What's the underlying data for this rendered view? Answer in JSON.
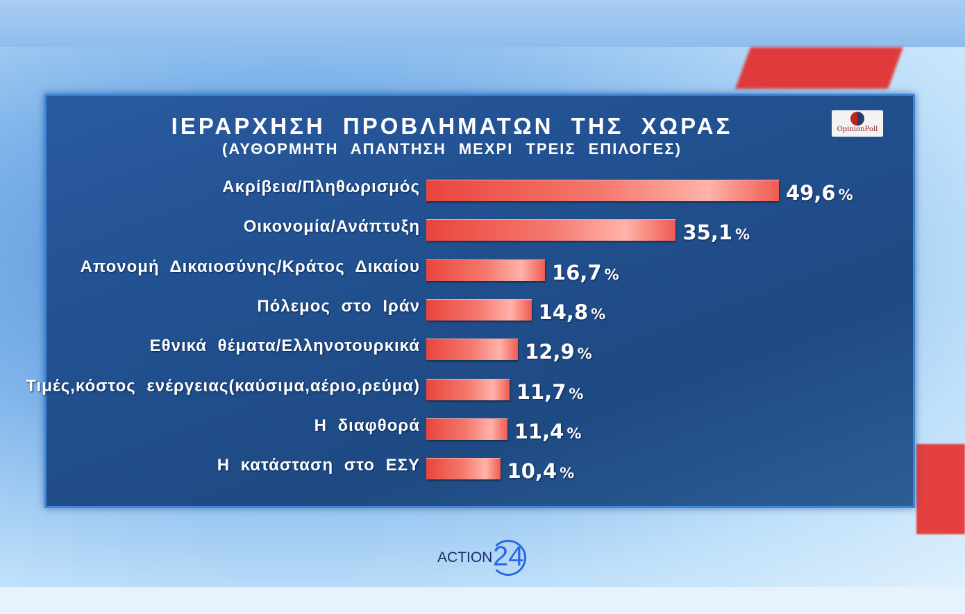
{
  "chart_data": {
    "type": "bar",
    "orientation": "horizontal",
    "title": "ΙΕΡΑΡΧΗΣΗ ΠΡΟΒΛΗΜΑΤΩΝ ΤΗΣ ΧΩΡΑΣ",
    "subtitle": "(ΑΥΘΟΡΜΗΤΗ ΑΠΑΝΤΗΣΗ ΜΕΧΡΙ ΤΡΕΙΣ ΕΠΙΛΟΓΕΣ)",
    "categories": [
      "Ακρίβεια/Πληθωρισμός",
      "Οικονομία/Ανάπτυξη",
      "Απονομή Δικαιοσύνης/Κράτος Δικαίου",
      "Πόλεμος στο Ιράν",
      "Εθνικά θέματα/Ελληνοτουρκικά",
      "Τιμές,κόστος ενέργειας(καύσιμα,αέριο,ρεύμα)",
      "Η διαφθορά",
      "Η κατάσταση στο ΕΣΥ"
    ],
    "values": [
      49.6,
      35.1,
      16.7,
      14.8,
      12.9,
      11.7,
      11.4,
      10.4
    ],
    "value_labels": [
      "49,6",
      "35,1",
      "16,7",
      "14,8",
      "12,9",
      "11,7",
      "11,4",
      "10,4"
    ],
    "unit": "%",
    "xlabel": "",
    "ylabel": "",
    "xlim": [
      0,
      50
    ],
    "grid": false,
    "bar_color": "#e8453c"
  },
  "logos": {
    "pollster": "OpinionPoll",
    "channel_text": "ACTION",
    "channel_number": "24"
  }
}
